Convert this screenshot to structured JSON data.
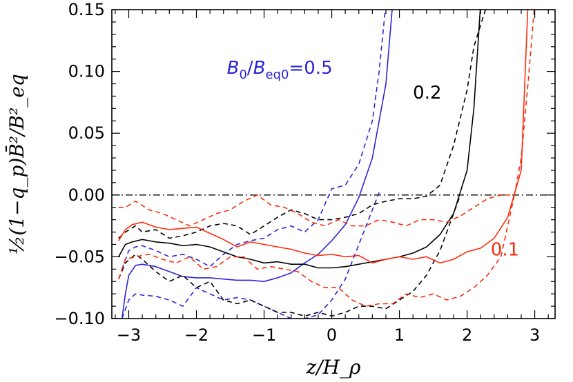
{
  "chart_data": {
    "type": "line",
    "xlabel": "z/H_ρ",
    "ylabel": "½(1−q_p)B̄²/B²_eq",
    "xlim": [
      -3.25,
      3.3
    ],
    "ylim": [
      -0.1,
      0.15
    ],
    "x_ticks": [
      "−3",
      "−2",
      "−1",
      "0",
      "1",
      "2",
      "3"
    ],
    "y_ticks": [
      "−0.10",
      "−0.05",
      "0.00",
      "0.05",
      "0.10",
      "0.15"
    ],
    "reference_line": {
      "y": 0.0,
      "style": "dash-dot"
    },
    "annotations": [
      {
        "text": "B0/Beq0=0.5",
        "base": "B",
        "sub1": "0",
        "mid": "/",
        "base2": "B",
        "sub2": "eq0",
        "rest": "=0.5",
        "color": "#2a24d8",
        "at": [
          -1.55,
          0.098
        ]
      },
      {
        "text": "0.2",
        "color": "#000000",
        "at": [
          1.2,
          0.078
        ]
      },
      {
        "text": "0.1",
        "color": "#ff2a0a",
        "at": [
          2.35,
          -0.049
        ]
      }
    ],
    "series": [
      {
        "group": "0.5",
        "style": "solid",
        "color": "#2a24d8",
        "x": [
          -3.1,
          -3.05,
          -3.0,
          -2.9,
          -2.8,
          -2.6,
          -2.4,
          -2.2,
          -2.0,
          -1.8,
          -1.6,
          -1.4,
          -1.2,
          -1.0,
          -0.8,
          -0.6,
          -0.4,
          -0.2,
          0.0,
          0.2,
          0.4,
          0.6,
          0.8,
          0.9
        ],
        "y": [
          -0.1,
          -0.08,
          -0.065,
          -0.057,
          -0.056,
          -0.058,
          -0.062,
          -0.066,
          -0.067,
          -0.067,
          -0.068,
          -0.069,
          -0.069,
          -0.07,
          -0.067,
          -0.063,
          -0.055,
          -0.048,
          -0.037,
          -0.024,
          -0.002,
          0.03,
          0.09,
          0.155
        ]
      },
      {
        "group": "0.5",
        "style": "dashed",
        "color": "#2a24d8",
        "x": [
          -3.1,
          -3.0,
          -2.9,
          -2.8,
          -2.6,
          -2.4,
          -2.2,
          -2.0,
          -1.8,
          -1.6,
          -1.4,
          -1.2,
          -1.0,
          -0.8,
          -0.6,
          -0.4,
          -0.2,
          0.0,
          0.2,
          0.4,
          0.6,
          0.7,
          0.8
        ],
        "y": [
          -0.06,
          -0.045,
          -0.042,
          -0.041,
          -0.045,
          -0.05,
          -0.048,
          -0.052,
          -0.058,
          -0.048,
          -0.04,
          -0.037,
          -0.035,
          -0.028,
          -0.025,
          -0.03,
          -0.02,
          0.005,
          0.008,
          0.025,
          0.06,
          0.1,
          0.155
        ]
      },
      {
        "group": "0.5",
        "style": "dashed",
        "color": "#2a24d8",
        "x": [
          -3.1,
          -3.0,
          -2.9,
          -2.8,
          -2.6,
          -2.4,
          -2.2,
          -2.0,
          -1.8,
          -1.6,
          -1.4,
          -1.2,
          -1.0,
          -0.8,
          -0.6,
          -0.4,
          -0.2,
          0.0,
          0.2,
          0.4,
          0.6,
          0.7
        ],
        "y": [
          -0.1,
          -0.085,
          -0.08,
          -0.081,
          -0.082,
          -0.085,
          -0.09,
          -0.075,
          -0.08,
          -0.085,
          -0.083,
          -0.085,
          -0.09,
          -0.095,
          -0.1,
          -0.1,
          -0.097,
          -0.085,
          -0.068,
          -0.04,
          -0.012,
          0.002
        ]
      },
      {
        "group": "0.2",
        "style": "solid",
        "color": "#000000",
        "x": [
          -3.15,
          -3.05,
          -2.95,
          -2.8,
          -2.6,
          -2.4,
          -2.2,
          -2.0,
          -1.8,
          -1.6,
          -1.4,
          -1.2,
          -1.0,
          -0.8,
          -0.6,
          -0.4,
          -0.2,
          0.0,
          0.2,
          0.4,
          0.6,
          0.8,
          1.0,
          1.2,
          1.4,
          1.6,
          1.8,
          2.0,
          2.1,
          2.2
        ],
        "y": [
          -0.05,
          -0.04,
          -0.038,
          -0.036,
          -0.038,
          -0.039,
          -0.041,
          -0.04,
          -0.042,
          -0.046,
          -0.05,
          -0.052,
          -0.055,
          -0.054,
          -0.056,
          -0.056,
          -0.059,
          -0.059,
          -0.058,
          -0.056,
          -0.054,
          -0.052,
          -0.05,
          -0.047,
          -0.042,
          -0.032,
          -0.015,
          0.02,
          0.07,
          0.155
        ]
      },
      {
        "group": "0.2",
        "style": "dashed",
        "color": "#000000",
        "x": [
          -3.15,
          -3.05,
          -2.9,
          -2.8,
          -2.6,
          -2.4,
          -2.2,
          -2.0,
          -1.8,
          -1.6,
          -1.4,
          -1.2,
          -1.0,
          -0.8,
          -0.6,
          -0.4,
          -0.2,
          0.0,
          0.2,
          0.4,
          0.6,
          0.8,
          1.0,
          1.2,
          1.4,
          1.6,
          1.8,
          2.0,
          2.1,
          2.3
        ],
        "y": [
          -0.035,
          -0.03,
          -0.025,
          -0.03,
          -0.028,
          -0.035,
          -0.033,
          -0.03,
          -0.025,
          -0.023,
          -0.025,
          -0.032,
          -0.025,
          -0.018,
          -0.012,
          -0.015,
          -0.02,
          -0.02,
          -0.018,
          -0.015,
          -0.008,
          -0.005,
          -0.003,
          -0.003,
          -0.001,
          0.008,
          0.04,
          0.085,
          0.12,
          0.155
        ]
      },
      {
        "group": "0.2",
        "style": "dashed",
        "color": "#000000",
        "x": [
          -3.15,
          -3.05,
          -2.9,
          -2.8,
          -2.6,
          -2.4,
          -2.2,
          -2.0,
          -1.8,
          -1.6,
          -1.4,
          -1.2,
          -1.0,
          -0.8,
          -0.6,
          -0.4,
          -0.2,
          0.0,
          0.2,
          0.4,
          0.6,
          0.8,
          1.0,
          1.2,
          1.4,
          1.6,
          1.8,
          1.9
        ],
        "y": [
          -0.068,
          -0.055,
          -0.048,
          -0.052,
          -0.062,
          -0.07,
          -0.065,
          -0.075,
          -0.07,
          -0.085,
          -0.088,
          -0.085,
          -0.09,
          -0.095,
          -0.095,
          -0.098,
          -0.095,
          -0.098,
          -0.095,
          -0.09,
          -0.09,
          -0.092,
          -0.085,
          -0.078,
          -0.065,
          -0.045,
          -0.015,
          0.0
        ]
      },
      {
        "group": "0.1",
        "style": "solid",
        "color": "#ff2a0a",
        "x": [
          -3.15,
          -3.05,
          -2.95,
          -2.8,
          -2.6,
          -2.4,
          -2.2,
          -2.0,
          -1.8,
          -1.6,
          -1.4,
          -1.2,
          -1.0,
          -0.8,
          -0.6,
          -0.4,
          -0.2,
          0.0,
          0.2,
          0.4,
          0.6,
          0.8,
          1.0,
          1.2,
          1.4,
          1.6,
          1.8,
          2.0,
          2.2,
          2.4,
          2.6,
          2.8,
          2.9
        ],
        "y": [
          -0.037,
          -0.028,
          -0.024,
          -0.022,
          -0.026,
          -0.028,
          -0.027,
          -0.026,
          -0.031,
          -0.036,
          -0.042,
          -0.038,
          -0.04,
          -0.042,
          -0.044,
          -0.047,
          -0.049,
          -0.048,
          -0.05,
          -0.049,
          -0.055,
          -0.052,
          -0.05,
          -0.052,
          -0.05,
          -0.055,
          -0.052,
          -0.046,
          -0.043,
          -0.035,
          -0.018,
          0.02,
          0.155
        ]
      },
      {
        "group": "0.1",
        "style": "dashed",
        "color": "#ff2a0a",
        "x": [
          -3.15,
          -3.05,
          -2.9,
          -2.7,
          -2.5,
          -2.3,
          -2.1,
          -1.9,
          -1.7,
          -1.5,
          -1.3,
          -1.1,
          -0.9,
          -0.7,
          -0.5,
          -0.3,
          -0.1,
          0.1,
          0.3,
          0.5,
          0.7,
          0.9,
          1.1,
          1.3,
          1.5,
          1.7,
          1.9,
          2.1,
          2.3,
          2.5,
          2.7,
          2.8,
          2.9,
          3.0
        ],
        "y": [
          -0.01,
          -0.01,
          -0.005,
          -0.012,
          -0.015,
          -0.02,
          -0.025,
          -0.02,
          -0.015,
          -0.012,
          -0.005,
          0.0,
          -0.008,
          -0.01,
          -0.015,
          -0.022,
          -0.025,
          -0.02,
          -0.025,
          -0.025,
          -0.02,
          -0.022,
          -0.025,
          -0.02,
          -0.02,
          -0.022,
          -0.017,
          -0.01,
          -0.003,
          0.0,
          0.0,
          0.03,
          0.09,
          0.155
        ]
      },
      {
        "group": "0.1",
        "style": "dashed",
        "color": "#ff2a0a",
        "x": [
          -3.15,
          -3.05,
          -2.9,
          -2.7,
          -2.5,
          -2.3,
          -2.1,
          -1.9,
          -1.7,
          -1.5,
          -1.3,
          -1.1,
          -0.9,
          -0.7,
          -0.5,
          -0.3,
          -0.1,
          0.1,
          0.3,
          0.5,
          0.7,
          0.9,
          1.1,
          1.3,
          1.5,
          1.7,
          1.9,
          2.1,
          2.3,
          2.5,
          2.6,
          2.7
        ],
        "y": [
          -0.068,
          -0.052,
          -0.05,
          -0.048,
          -0.052,
          -0.055,
          -0.05,
          -0.06,
          -0.058,
          -0.05,
          -0.05,
          -0.06,
          -0.058,
          -0.06,
          -0.062,
          -0.07,
          -0.075,
          -0.075,
          -0.085,
          -0.09,
          -0.088,
          -0.088,
          -0.08,
          -0.083,
          -0.08,
          -0.085,
          -0.082,
          -0.075,
          -0.065,
          -0.05,
          -0.025,
          0.0
        ]
      }
    ]
  }
}
